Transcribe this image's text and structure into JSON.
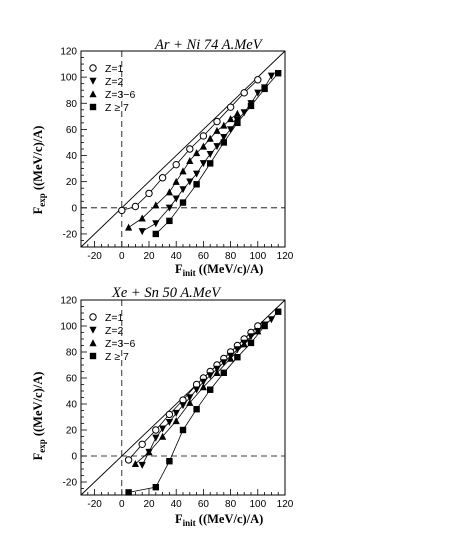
{
  "chart_data": [
    {
      "type": "scatter",
      "title": "Ar + Ni 74 A.MeV",
      "xlabel_main": "F",
      "xlabel_sub": "init",
      "xlabel_unit": "((MeV/c)/A)",
      "ylabel_main": "F",
      "ylabel_sub": "exp",
      "ylabel_unit": "((MeV/c)/A)",
      "xlim": [
        -30,
        120
      ],
      "ylim": [
        -30,
        120
      ],
      "xticks": [
        -20,
        0,
        20,
        40,
        60,
        80,
        100,
        120
      ],
      "yticks": [
        -20,
        0,
        20,
        40,
        60,
        80,
        100,
        120
      ],
      "series": [
        {
          "name": "Z=1",
          "marker": "open-circle",
          "x": [
            0,
            10,
            20,
            30,
            40,
            50,
            60,
            70,
            80,
            90,
            100
          ],
          "y": [
            -2,
            1,
            11,
            23,
            33,
            45,
            55,
            66,
            77,
            88,
            98
          ]
        },
        {
          "name": "Z=2",
          "marker": "filled-triangle-down",
          "x": [
            15,
            25,
            35,
            40,
            45,
            50,
            55,
            60,
            65,
            70,
            75,
            80,
            85,
            90,
            95,
            100,
            105,
            110
          ],
          "y": [
            -18,
            -12,
            0,
            7,
            14,
            20,
            26,
            34,
            41,
            47,
            54,
            60,
            67,
            73,
            80,
            88,
            92,
            101
          ]
        },
        {
          "name": "Z=3−6",
          "marker": "filled-triangle-up",
          "x": [
            5,
            15,
            25,
            35,
            40,
            45,
            50,
            55,
            60,
            65,
            70,
            75,
            80,
            85
          ],
          "y": [
            -15,
            -8,
            2,
            12,
            20,
            28,
            36,
            42,
            47,
            53,
            59,
            63,
            68,
            72
          ]
        },
        {
          "name": "Z ≥ 7",
          "marker": "filled-square",
          "x": [
            25,
            35,
            45,
            55,
            65,
            75,
            85,
            95,
            105,
            115
          ],
          "y": [
            -20,
            -10,
            4,
            18,
            34,
            50,
            65,
            78,
            91,
            103
          ]
        }
      ],
      "reference_line": {
        "x": [
          -30,
          120
        ],
        "y": [
          -30,
          120
        ]
      }
    },
    {
      "type": "scatter",
      "title": "Xe + Sn 50 A.MeV",
      "xlabel_main": "F",
      "xlabel_sub": "init",
      "xlabel_unit": "((MeV/c)/A)",
      "ylabel_main": "F",
      "ylabel_sub": "exp",
      "ylabel_unit": "((MeV/c)/A)",
      "xlim": [
        -30,
        120
      ],
      "ylim": [
        -30,
        120
      ],
      "xticks": [
        -20,
        0,
        20,
        40,
        60,
        80,
        100,
        120
      ],
      "yticks": [
        -20,
        0,
        20,
        40,
        60,
        80,
        100,
        120
      ],
      "series": [
        {
          "name": "Z=1",
          "marker": "open-circle",
          "x": [
            5,
            15,
            25,
            35,
            45,
            55,
            60,
            65,
            70,
            75,
            80,
            85,
            90,
            95,
            100
          ],
          "y": [
            -3,
            9,
            20,
            32,
            43,
            55,
            60,
            65,
            70,
            75,
            80,
            85,
            90,
            95,
            100
          ]
        },
        {
          "name": "Z=2",
          "marker": "filled-triangle-down",
          "x": [
            15,
            20,
            25,
            30,
            35,
            40,
            45,
            50,
            55,
            60,
            65,
            70,
            75,
            80,
            85,
            90,
            95,
            100,
            105,
            110
          ],
          "y": [
            -7,
            3,
            14,
            21,
            26,
            33,
            39,
            45,
            51,
            57,
            62,
            67,
            72,
            77,
            82,
            87,
            92,
            96,
            101,
            105
          ]
        },
        {
          "name": "Z=3−6",
          "marker": "filled-triangle-up",
          "x": [
            10,
            20,
            30,
            40,
            50,
            60,
            70,
            80,
            90,
            100
          ],
          "y": [
            -6,
            3,
            15,
            27,
            41,
            53,
            64,
            75,
            86,
            96
          ]
        },
        {
          "name": "Z ≥ 7",
          "marker": "filled-square",
          "x": [
            5,
            25,
            35,
            45,
            55,
            65,
            75,
            85,
            95,
            105,
            115
          ],
          "y": [
            -28,
            -24,
            -4,
            20,
            36,
            51,
            64,
            76,
            87,
            100,
            111
          ]
        }
      ],
      "reference_line": {
        "x": [
          -30,
          120
        ],
        "y": [
          -30,
          120
        ]
      }
    }
  ]
}
